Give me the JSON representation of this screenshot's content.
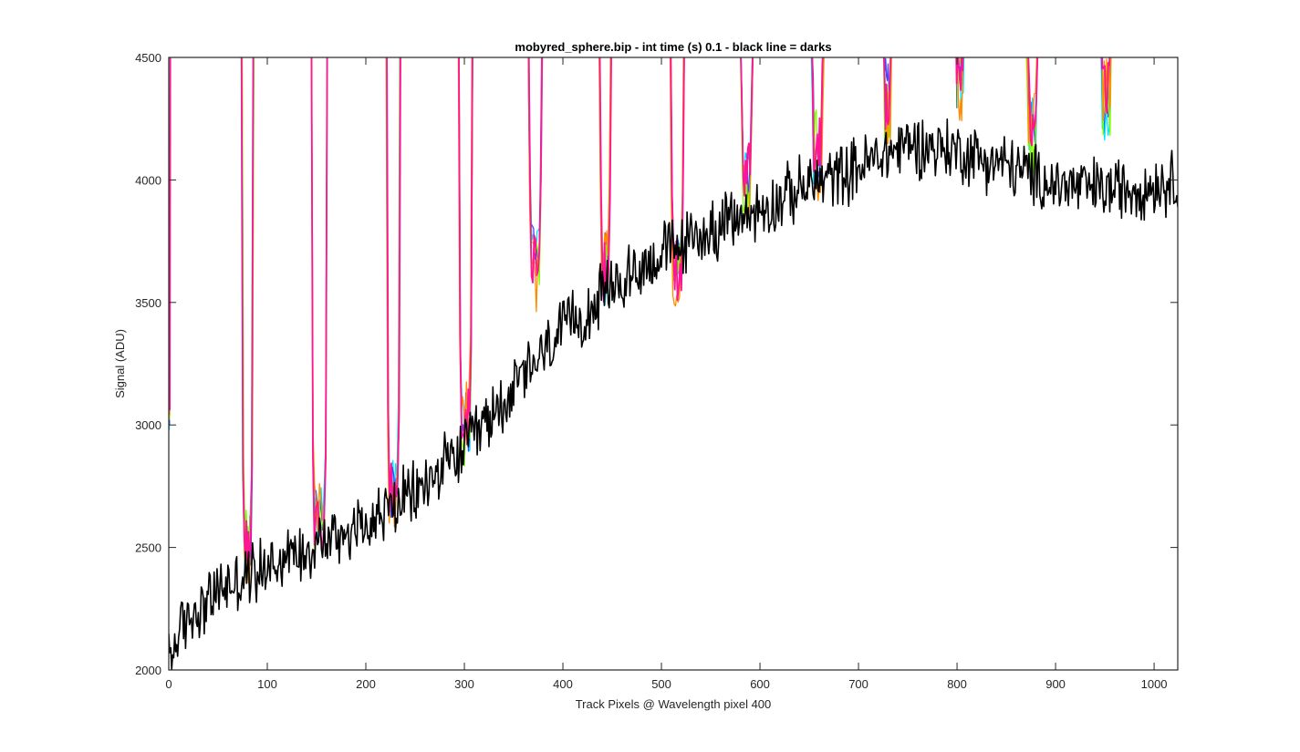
{
  "chart_data": {
    "type": "line",
    "title": "mobyred_sphere.bip - int time (s) 0.1 - black line = darks",
    "xlabel": "Track Pixels @ Wavelength pixel 400",
    "ylabel": "Signal (ADU)",
    "xlim": [
      0,
      1024
    ],
    "ylim": [
      2000,
      4500
    ],
    "x_ticks": [
      0,
      100,
      200,
      300,
      400,
      500,
      600,
      700,
      800,
      900,
      1000
    ],
    "y_ticks": [
      2000,
      2500,
      3000,
      3500,
      4000,
      4500
    ],
    "x_tick_labels": [
      "0",
      "100",
      "200",
      "300",
      "400",
      "500",
      "600",
      "700",
      "800",
      "900",
      "1000"
    ],
    "y_tick_labels": [
      "2000",
      "2500",
      "3000",
      "3500",
      "4000",
      "4500"
    ],
    "grid": false,
    "box": true,
    "series": [
      {
        "role": "darks",
        "color": "#000000",
        "trend": [
          [
            0,
            2050
          ],
          [
            20,
            2220
          ],
          [
            50,
            2320
          ],
          [
            100,
            2430
          ],
          [
            150,
            2520
          ],
          [
            200,
            2600
          ],
          [
            250,
            2720
          ],
          [
            300,
            2900
          ],
          [
            350,
            3150
          ],
          [
            400,
            3380
          ],
          [
            450,
            3560
          ],
          [
            500,
            3700
          ],
          [
            550,
            3790
          ],
          [
            600,
            3880
          ],
          [
            650,
            3980
          ],
          [
            700,
            4050
          ],
          [
            750,
            4150
          ],
          [
            800,
            4120
          ],
          [
            850,
            4060
          ],
          [
            900,
            3980
          ],
          [
            950,
            3960
          ],
          [
            1000,
            3980
          ],
          [
            1024,
            4000
          ]
        ],
        "noise_amplitude_adu": 110
      }
    ],
    "spot_series": {
      "colors": [
        "#00e5ff",
        "#3f48ff",
        "#7fff00",
        "#ff8c00",
        "#ff1493"
      ],
      "peaks": [
        {
          "left": 77,
          "right": 83,
          "floor": 2500
        },
        {
          "left": 148,
          "right": 158,
          "floor": 2560
        },
        {
          "left": 224,
          "right": 232,
          "floor": 2700
        },
        {
          "left": 297,
          "right": 305,
          "floor": 2950
        },
        {
          "left": 368,
          "right": 376,
          "floor": 3600
        },
        {
          "left": 440,
          "right": 446,
          "floor": 3550
        },
        {
          "left": 512,
          "right": 520,
          "floor": 3620
        },
        {
          "left": 583,
          "right": 590,
          "floor": 3950
        },
        {
          "left": 655,
          "right": 662,
          "floor": 4050
        },
        {
          "left": 727,
          "right": 732,
          "floor": 4250
        },
        {
          "left": 800,
          "right": 806,
          "floor": 4350
        },
        {
          "left": 873,
          "right": 880,
          "floor": 4150
        },
        {
          "left": 948,
          "right": 955,
          "floor": 4250
        }
      ]
    }
  }
}
